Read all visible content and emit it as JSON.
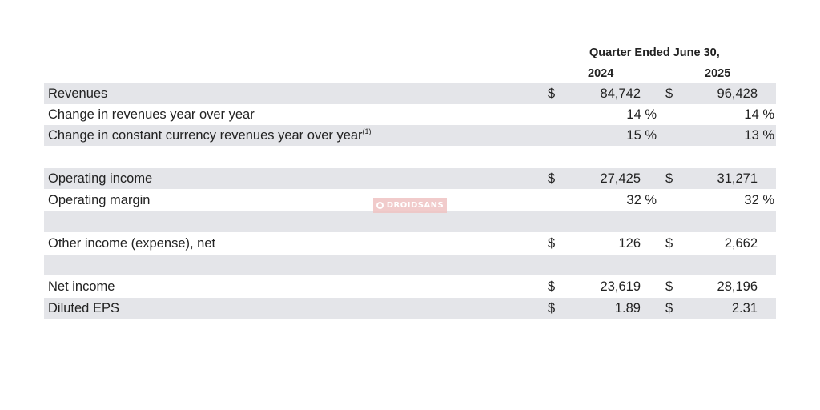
{
  "header": {
    "period": "Quarter Ended June 30,",
    "years": [
      "2024",
      "2025"
    ]
  },
  "rows": [
    {
      "label": "Revenues",
      "currency": "$",
      "v2024": "84,742",
      "v2025": "96,428"
    },
    {
      "label": "Change in revenues year over year",
      "v2024": "14 %",
      "v2025": "14 %"
    },
    {
      "label": "Change in constant currency revenues year over year",
      "footnote": "(1)",
      "v2024": "15 %",
      "v2025": "13 %"
    },
    {
      "label": "Operating income",
      "currency": "$",
      "v2024": "27,425",
      "v2025": "31,271"
    },
    {
      "label": "Operating margin",
      "v2024": "32 %",
      "v2025": "32 %"
    },
    {
      "label": "Other income (expense), net",
      "currency": "$",
      "v2024": "126",
      "v2025": "2,662"
    },
    {
      "label": "Net income",
      "currency": "$",
      "v2024": "23,619",
      "v2025": "28,196"
    },
    {
      "label": "Diluted EPS",
      "currency": "$",
      "v2024": "1.89",
      "v2025": "2.31"
    }
  ],
  "watermark": {
    "text": "DROIDSANS",
    "icon": "droidsans-logo-icon"
  },
  "colors": {
    "row_shade": "#e4e5e9",
    "text": "#222222",
    "watermark": "#efc3c3"
  }
}
